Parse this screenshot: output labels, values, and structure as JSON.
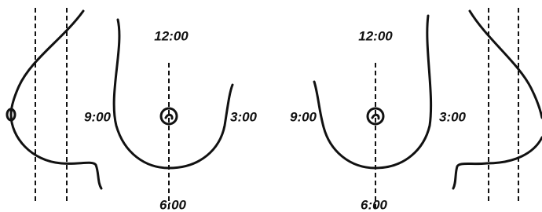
{
  "views": [
    {
      "labels": {
        "top": "12:00",
        "left": "9:00",
        "right": "3:00",
        "bottom": "6:00"
      }
    },
    {
      "labels": {
        "top": "12:00",
        "left": "9:00",
        "right": "3:00",
        "bottom": "6:00"
      }
    }
  ]
}
